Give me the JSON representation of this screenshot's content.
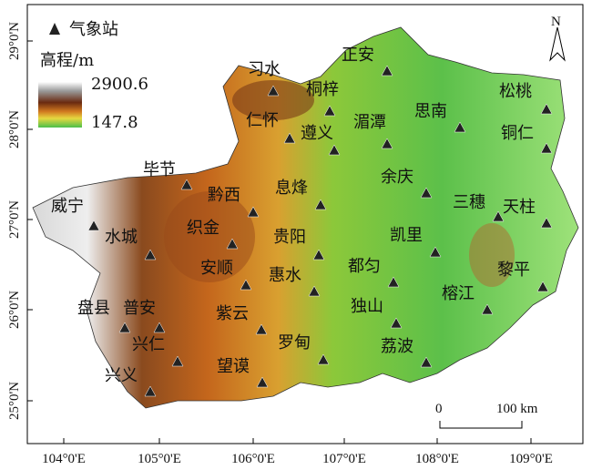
{
  "map": {
    "legend": {
      "station": "气象站",
      "elevation_title": "高程/m",
      "elevation_max": 2900.6,
      "elevation_min": 147.8
    },
    "stations": [
      "习水",
      "桐梓",
      "正安",
      "松桃",
      "仁怀",
      "遵义",
      "湄潭",
      "思南",
      "铜仁",
      "毕节",
      "黔西",
      "息烽",
      "余庆",
      "三穗",
      "天柱",
      "威宁",
      "水城",
      "织金",
      "贵阳",
      "凯里",
      "安顺",
      "惠水",
      "都匀",
      "黎平",
      "榕江",
      "盘县",
      "普安",
      "独山",
      "紫云",
      "兴仁",
      "罗甸",
      "荔波",
      "望谟",
      "兴义"
    ],
    "lon_ticks": [
      "104°0'E",
      "105°0'E",
      "106°0'E",
      "107°0'E",
      "108°0'E",
      "109°0'E"
    ],
    "lat_ticks": [
      "29°0'N",
      "28°0'N",
      "27°0'N",
      "26°0'N",
      "25°0'N"
    ],
    "scale_bar": {
      "start": "0",
      "end": "100 km"
    },
    "north": "N"
  }
}
